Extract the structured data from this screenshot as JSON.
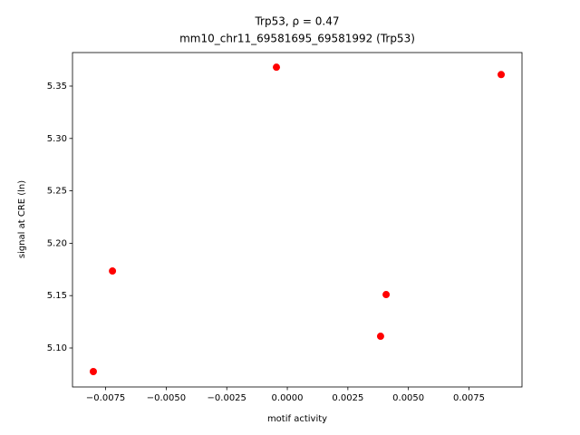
{
  "chart_data": {
    "type": "scatter",
    "title": "Trp53, ρ = 0.47",
    "subtitle": "mm10_chr11_69581695_69581992 (Trp53)",
    "x_label": "motif activity",
    "y_label": "signal at CRE (ln)",
    "color": "#ff0000",
    "x": [
      -0.00801,
      -0.00722,
      -0.00045,
      0.00385,
      0.00408,
      0.00883
    ],
    "values": [
      5.0775,
      5.1735,
      5.368,
      5.1112,
      5.151,
      5.361
    ],
    "xlim": [
      -0.00887,
      0.00969
    ],
    "ylim": [
      5.0628,
      5.382
    ],
    "xticks": [
      {
        "value": -0.0075,
        "label": "−0.0075"
      },
      {
        "value": -0.005,
        "label": "−0.0050"
      },
      {
        "value": -0.0025,
        "label": "−0.0025"
      },
      {
        "value": 0,
        "label": "0.0000"
      },
      {
        "value": 0.0025,
        "label": "0.0025"
      },
      {
        "value": 0.005,
        "label": "0.0050"
      },
      {
        "value": 0.0075,
        "label": "0.0075"
      }
    ],
    "yticks": [
      {
        "value": 5.1,
        "label": "5.10"
      },
      5.15,
      {
        "value": 5.2,
        "label": "5.20"
      },
      5.25,
      {
        "value": 5.3,
        "label": "5.30"
      },
      5.35
    ]
  }
}
